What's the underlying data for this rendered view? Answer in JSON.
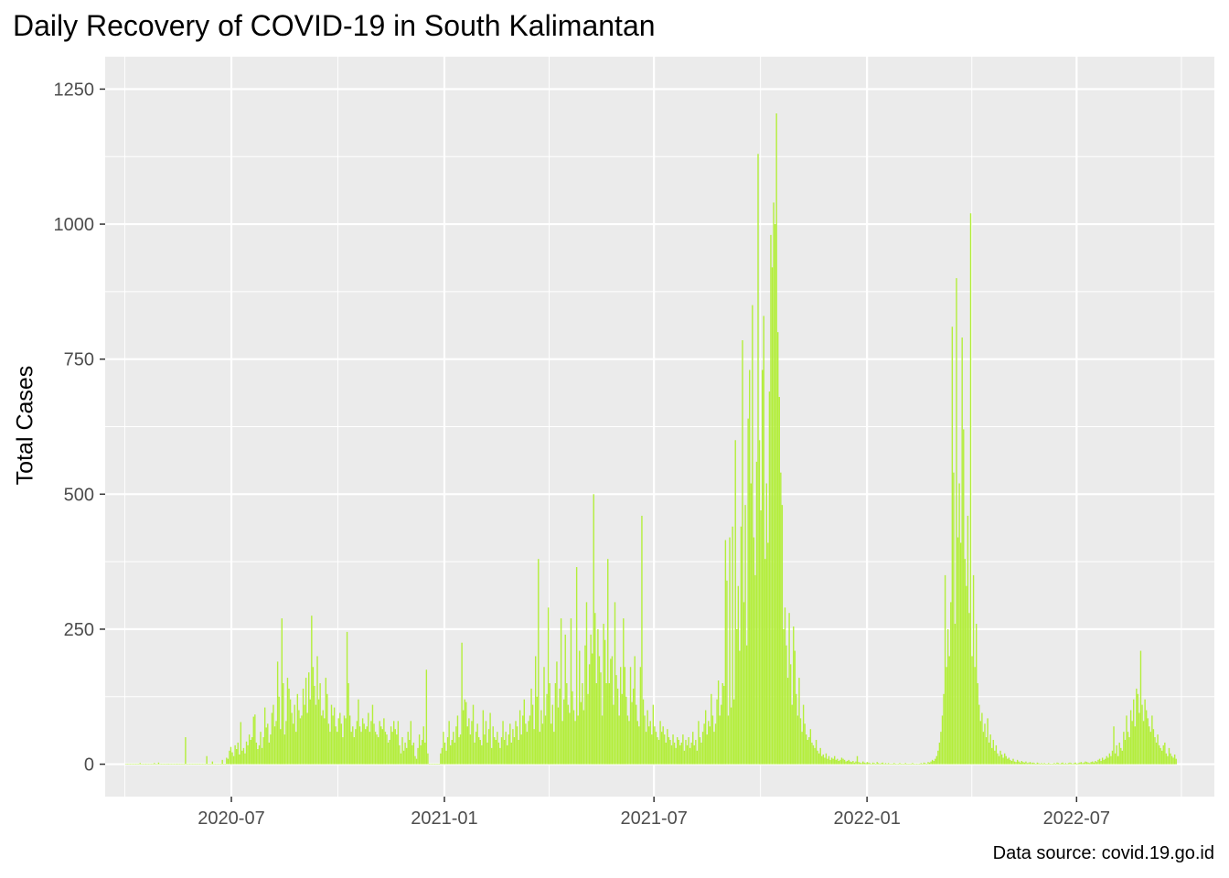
{
  "chart_data": {
    "type": "bar",
    "title": "Daily Recovery of COVID-19 in South Kalimantan",
    "xlabel": "",
    "ylabel": "Total Cases",
    "caption": "Data source: covid.19.go.id",
    "bar_color": "#b3ee3a",
    "panel_background": "#ebebeb",
    "grid": true,
    "legend": "none",
    "x_range": [
      "2020-03-14",
      "2022-10-28"
    ],
    "ylim": [
      -60,
      1310
    ],
    "x_ticks": [
      {
        "date": "2020-07-01",
        "label": "2020-07"
      },
      {
        "date": "2021-01-01",
        "label": "2021-01"
      },
      {
        "date": "2021-07-01",
        "label": "2021-07"
      },
      {
        "date": "2022-01-01",
        "label": "2022-01"
      },
      {
        "date": "2022-07-01",
        "label": "2022-07"
      }
    ],
    "y_ticks": [
      {
        "value": 0,
        "label": "0"
      },
      {
        "value": 250,
        "label": "250"
      },
      {
        "value": 500,
        "label": "500"
      },
      {
        "value": 750,
        "label": "750"
      },
      {
        "value": 1000,
        "label": "1000"
      },
      {
        "value": 1250,
        "label": "1250"
      }
    ],
    "series": [
      {
        "start_date": "2020-04-01",
        "end_date": "2022-09-25",
        "values": [
          0,
          0,
          0,
          0,
          0,
          0,
          0,
          0,
          0,
          0,
          2,
          0,
          0,
          0,
          1,
          0,
          0,
          0,
          0,
          0,
          2,
          0,
          0,
          3,
          0,
          0,
          0,
          0,
          0,
          0,
          1,
          0,
          0,
          0,
          0,
          0,
          1,
          0,
          0,
          0,
          0,
          0,
          50,
          0,
          0,
          0,
          0,
          0,
          0,
          0,
          0,
          0,
          0,
          0,
          0,
          0,
          0,
          15,
          0,
          0,
          0,
          5,
          0,
          0,
          0,
          0,
          0,
          0,
          8,
          0,
          0,
          12,
          10,
          25,
          32,
          22,
          15,
          35,
          28,
          40,
          18,
          78,
          25,
          30,
          20,
          42,
          35,
          55,
          45,
          50,
          88,
          92,
          40,
          28,
          35,
          60,
          30,
          50,
          105,
          68,
          75,
          40,
          55,
          95,
          110,
          70,
          80,
          190,
          125,
          65,
          270,
          150,
          55,
          80,
          160,
          140,
          120,
          95,
          75,
          110,
          60,
          130,
          100,
          85,
          90,
          140,
          110,
          160,
          95,
          170,
          120,
          275,
          180,
          145,
          110,
          200,
          120,
          150,
          90,
          100,
          85,
          160,
          130,
          75,
          60,
          110,
          90,
          105,
          70,
          60,
          85,
          95,
          75,
          50,
          90,
          85,
          245,
          150,
          90,
          60,
          70,
          50,
          65,
          80,
          120,
          70,
          60,
          85,
          75,
          65,
          70,
          95,
          60,
          80,
          110,
          75,
          60,
          55,
          50,
          80,
          70,
          65,
          85,
          60,
          55,
          40,
          45,
          70,
          60,
          80,
          65,
          55,
          80,
          35,
          20,
          50,
          25,
          40,
          30,
          60,
          45,
          80,
          35,
          40,
          15,
          10,
          30,
          55,
          35,
          45,
          70,
          40,
          175,
          20,
          0,
          0,
          0,
          0,
          0,
          0,
          0,
          0,
          20,
          30,
          60,
          40,
          25,
          50,
          80,
          35,
          45,
          60,
          40,
          70,
          90,
          50,
          55,
          225,
          100,
          120,
          115,
          70,
          85,
          55,
          80,
          110,
          40,
          60,
          75,
          50,
          45,
          35,
          100,
          55,
          80,
          40,
          65,
          95,
          30,
          70,
          50,
          45,
          60,
          40,
          30,
          50,
          80,
          45,
          60,
          35,
          55,
          75,
          40,
          65,
          50,
          80,
          70,
          45,
          100,
          55,
          90,
          120,
          75,
          60,
          80,
          90,
          140,
          110,
          65,
          200,
          125,
          380,
          60,
          100,
          75,
          180,
          90,
          130,
          290,
          150,
          75,
          110,
          60,
          150,
          190,
          105,
          140,
          270,
          80,
          120,
          240,
          150,
          110,
          95,
          270,
          135,
          100,
          80,
          365,
          90,
          210,
          115,
          150,
          100,
          220,
          300,
          130,
          185,
          240,
          205,
          500,
          280,
          150,
          250,
          200,
          170,
          90,
          260,
          230,
          150,
          380,
          150,
          195,
          200,
          110,
          300,
          165,
          140,
          90,
          180,
          130,
          270,
          180,
          125,
          90,
          80,
          180,
          115,
          140,
          200,
          110,
          80,
          70,
          180,
          460,
          120,
          90,
          60,
          100,
          70,
          80,
          55,
          110,
          70,
          60,
          50,
          45,
          80,
          60,
          70,
          55,
          40,
          65,
          50,
          45,
          35,
          55,
          40,
          30,
          50,
          45,
          35,
          40,
          55,
          25,
          45,
          35,
          50,
          30,
          40,
          60,
          35,
          45,
          25,
          80,
          50,
          40,
          60,
          75,
          100,
          55,
          80,
          70,
          130,
          90,
          60,
          75,
          120,
          155,
          90,
          110,
          150,
          145,
          415,
          340,
          90,
          420,
          105,
          440,
          120,
          600,
          250,
          330,
          210,
          440,
          785,
          300,
          480,
          220,
          640,
          730,
          520,
          850,
          420,
          350,
          560,
          1130,
          600,
          470,
          730,
          830,
          380,
          520,
          410,
          690,
          980,
          920,
          1040,
          1000,
          1205,
          800,
          680,
          540,
          480,
          250,
          290,
          220,
          160,
          280,
          185,
          110,
          255,
          210,
          130,
          90,
          160,
          85,
          60,
          110,
          75,
          55,
          45,
          50,
          65,
          40,
          35,
          30,
          45,
          25,
          20,
          30,
          15,
          18,
          12,
          20,
          10,
          15,
          8,
          12,
          10,
          15,
          8,
          10,
          6,
          8,
          12,
          10,
          8,
          5,
          6,
          8,
          5,
          4,
          6,
          3,
          5,
          15,
          4,
          3,
          2,
          5,
          3,
          2,
          4,
          3,
          2,
          1,
          3,
          2,
          1,
          4,
          2,
          1,
          2,
          3,
          1,
          2,
          1,
          2,
          1,
          0,
          1,
          2,
          1,
          0,
          1,
          2,
          1,
          1,
          0,
          2,
          1,
          0,
          1,
          1,
          2,
          1,
          0,
          1,
          0,
          1,
          2,
          1,
          3,
          2,
          1,
          4,
          3,
          5,
          8,
          6,
          10,
          15,
          25,
          40,
          60,
          90,
          130,
          350,
          180,
          250,
          200,
          300,
          810,
          540,
          260,
          900,
          420,
          520,
          410,
          790,
          620,
          380,
          330,
          460,
          280,
          1020,
          200,
          350,
          180,
          260,
          150,
          110,
          80,
          95,
          60,
          75,
          50,
          85,
          40,
          55,
          30,
          45,
          25,
          35,
          20,
          15,
          25,
          18,
          12,
          20,
          15,
          10,
          12,
          8,
          6,
          10,
          5,
          4,
          8,
          5,
          3,
          6,
          4,
          3,
          5,
          2,
          3,
          4,
          2,
          3,
          2,
          1,
          3,
          2,
          1,
          2,
          1,
          2,
          1,
          1,
          2,
          1,
          0,
          1,
          2,
          1,
          3,
          2,
          1,
          2,
          3,
          1,
          2,
          1,
          2,
          3,
          2,
          1,
          2,
          3,
          1,
          2,
          3,
          4,
          2,
          3,
          5,
          4,
          3,
          2,
          4,
          5,
          3,
          6,
          4,
          8,
          10,
          6,
          12,
          8,
          10,
          15,
          12,
          20,
          15,
          25,
          70,
          20,
          35,
          15,
          40,
          30,
          25,
          60,
          45,
          90,
          60,
          50,
          100,
          80,
          120,
          70,
          140,
          130,
          95,
          210,
          110,
          80,
          120,
          100,
          85,
          70,
          60,
          90,
          65,
          50,
          40,
          55,
          35,
          30,
          25,
          35,
          40,
          20,
          15,
          30,
          20,
          15,
          12,
          18,
          10
        ]
      }
    ]
  }
}
